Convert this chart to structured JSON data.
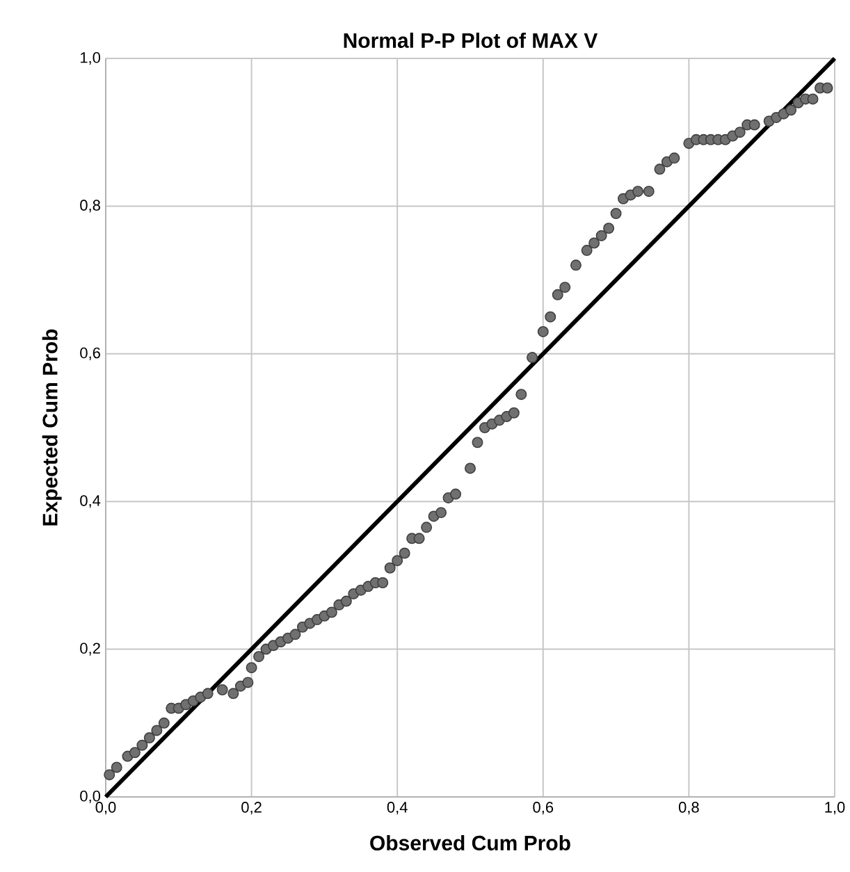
{
  "chart_data": {
    "type": "scatter",
    "title": "Normal P-P Plot of MAX V",
    "xlabel": "Observed Cum Prob",
    "ylabel": "Expected Cum Prob",
    "xlim": [
      0,
      1
    ],
    "ylim": [
      0,
      1
    ],
    "xticks": [
      {
        "value": 0,
        "label": "0,0"
      },
      {
        "value": 0.2,
        "label": "0,2"
      },
      {
        "value": 0.4,
        "label": "0,4"
      },
      {
        "value": 0.6,
        "label": "0,6"
      },
      {
        "value": 0.8,
        "label": "0,8"
      },
      {
        "value": 1,
        "label": "1,0"
      }
    ],
    "yticks": [
      {
        "value": 0,
        "label": "0,0"
      },
      {
        "value": 0.2,
        "label": "0,2"
      },
      {
        "value": 0.4,
        "label": "0,4"
      },
      {
        "value": 0.6,
        "label": "0,6"
      },
      {
        "value": 0.8,
        "label": "0,8"
      },
      {
        "value": 1,
        "label": "1,0"
      }
    ],
    "grid": true,
    "marker": "circle",
    "series": [
      {
        "color": "#707070",
        "x": [
          0.005,
          0.015,
          0.03,
          0.04,
          0.05,
          0.06,
          0.07,
          0.08,
          0.09,
          0.1,
          0.11,
          0.12,
          0.13,
          0.14,
          0.16,
          0.175,
          0.185,
          0.195,
          0.2,
          0.21,
          0.22,
          0.23,
          0.24,
          0.25,
          0.26,
          0.27,
          0.28,
          0.29,
          0.3,
          0.31,
          0.32,
          0.33,
          0.34,
          0.35,
          0.36,
          0.37,
          0.38,
          0.39,
          0.4,
          0.41,
          0.42,
          0.43,
          0.44,
          0.45,
          0.46,
          0.47,
          0.48,
          0.5,
          0.51,
          0.52,
          0.53,
          0.54,
          0.55,
          0.56,
          0.57,
          0.585,
          0.6,
          0.61,
          0.62,
          0.63,
          0.645,
          0.66,
          0.67,
          0.68,
          0.69,
          0.7,
          0.71,
          0.72,
          0.73,
          0.745,
          0.76,
          0.77,
          0.78,
          0.8,
          0.81,
          0.82,
          0.83,
          0.84,
          0.85,
          0.86,
          0.87,
          0.88,
          0.89,
          0.91,
          0.92,
          0.93,
          0.94,
          0.95,
          0.96,
          0.97,
          0.98,
          0.99
        ],
        "values": [
          0.03,
          0.04,
          0.055,
          0.06,
          0.07,
          0.08,
          0.09,
          0.1,
          0.12,
          0.12,
          0.125,
          0.13,
          0.135,
          0.14,
          0.145,
          0.14,
          0.15,
          0.155,
          0.175,
          0.19,
          0.2,
          0.205,
          0.21,
          0.215,
          0.22,
          0.23,
          0.235,
          0.24,
          0.245,
          0.25,
          0.26,
          0.265,
          0.275,
          0.28,
          0.285,
          0.29,
          0.29,
          0.31,
          0.32,
          0.33,
          0.35,
          0.35,
          0.365,
          0.38,
          0.385,
          0.405,
          0.41,
          0.445,
          0.48,
          0.5,
          0.505,
          0.51,
          0.515,
          0.52,
          0.545,
          0.595,
          0.63,
          0.65,
          0.68,
          0.69,
          0.72,
          0.74,
          0.75,
          0.76,
          0.77,
          0.79,
          0.81,
          0.815,
          0.82,
          0.82,
          0.85,
          0.86,
          0.865,
          0.885,
          0.89,
          0.89,
          0.89,
          0.89,
          0.89,
          0.895,
          0.9,
          0.91,
          0.91,
          0.915,
          0.92,
          0.925,
          0.93,
          0.94,
          0.945,
          0.945,
          0.96,
          0.96
        ]
      },
      {
        "type": "line",
        "marker": "none",
        "color": "#000000",
        "x": [
          0,
          1
        ],
        "values": [
          0,
          1
        ]
      }
    ]
  }
}
